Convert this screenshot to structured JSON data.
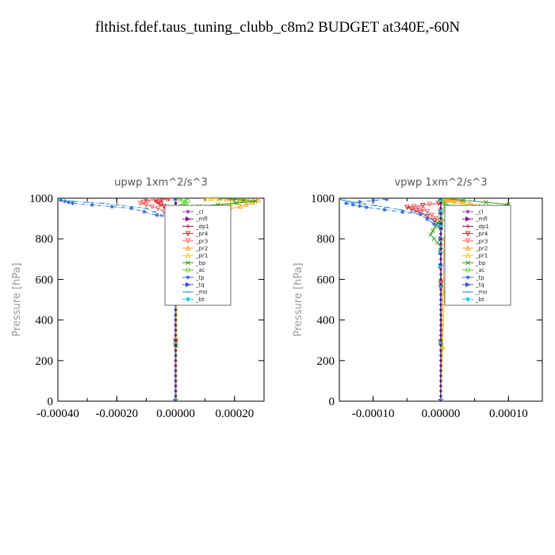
{
  "figure": {
    "title": "flthist.fdef.taus_tuning_clubb_c8m2  BUDGET at340E,-60N"
  },
  "legend_items": [
    {
      "label": "_cl",
      "color": "#7b56a3",
      "marker": "star"
    },
    {
      "label": "_mfl",
      "color": "#8e1b8e",
      "marker": "tri-right"
    },
    {
      "label": "_dp1",
      "color": "#a00f3c",
      "marker": "plus"
    },
    {
      "label": "_pr4",
      "color": "#d9232d",
      "marker": "tri-down"
    },
    {
      "label": "_pr3",
      "color": "#f06a6a",
      "marker": "tri-down"
    },
    {
      "label": "_pr2",
      "color": "#f5a623",
      "marker": "tri-up"
    },
    {
      "label": "_pr1",
      "color": "#eed21a",
      "marker": "tri-up"
    },
    {
      "label": "_bp",
      "color": "#3ca01e",
      "marker": "cross"
    },
    {
      "label": "_ac",
      "color": "#5ccf2b",
      "marker": "circle"
    },
    {
      "label": "_tp",
      "color": "#3b6fd1",
      "marker": "star"
    },
    {
      "label": "_tq",
      "color": "#3a55c8",
      "marker": "tri-right"
    },
    {
      "label": "_mo",
      "color": "#2a95cf",
      "marker": "dash"
    },
    {
      "label": "_bt",
      "color": "#1fd1e0",
      "marker": "diamond"
    }
  ],
  "chart_data": [
    {
      "type": "line",
      "title": "upwp   1xm^2/s^3",
      "ylabel": "Pressure  [hPa]",
      "xlim": [
        -0.0004,
        0.0003
      ],
      "ylim": [
        1000,
        0
      ],
      "xticks": [
        -0.0004,
        -0.0002,
        0.0,
        0.0002
      ],
      "xtick_labels": [
        "-0.00040",
        "-0.00020",
        "0.00000",
        "0.00020"
      ],
      "yticks": [
        0,
        200,
        400,
        600,
        800,
        1000
      ],
      "ytick_labels": [
        "0",
        "200",
        "400",
        "600",
        "800",
        "1000"
      ],
      "legend_position": "top-right",
      "series": [
        {
          "name": "_cl",
          "x": [
            0,
            0,
            0,
            0,
            0,
            0
          ],
          "y": [
            0,
            200,
            400,
            600,
            800,
            1000
          ]
        },
        {
          "name": "_mfl",
          "x": [
            0,
            0,
            0,
            0,
            0,
            0
          ],
          "y": [
            0,
            200,
            400,
            600,
            800,
            1000
          ]
        },
        {
          "name": "_dp1",
          "x": [
            0,
            0,
            0,
            0,
            0,
            0
          ],
          "y": [
            0,
            200,
            400,
            600,
            800,
            1000
          ]
        },
        {
          "name": "_pr4",
          "x": [
            0,
            0,
            -2e-05,
            -5e-05,
            -7e-05,
            0.0
          ],
          "y": [
            0,
            880,
            940,
            970,
            990,
            1000
          ]
        },
        {
          "name": "_pr3",
          "x": [
            0,
            0,
            -6e-05,
            -0.00012,
            -9e-05,
            0.0
          ],
          "y": [
            0,
            900,
            950,
            975,
            990,
            1000
          ]
        },
        {
          "name": "_pr2",
          "x": [
            0,
            4e-06,
            6e-05,
            0.00022,
            0.00028,
            0.00012
          ],
          "y": [
            0,
            820,
            900,
            960,
            990,
            1000
          ]
        },
        {
          "name": "_pr1",
          "x": [
            0,
            6e-06,
            4e-05,
            0.00016,
            0.00024,
            0.0001
          ],
          "y": [
            0,
            820,
            900,
            960,
            990,
            1000
          ]
        },
        {
          "name": "_bp",
          "x": [
            0,
            0,
            1e-05,
            8e-05,
            0.00027,
            0.00015
          ],
          "y": [
            0,
            850,
            920,
            960,
            985,
            1000
          ]
        },
        {
          "name": "_ac",
          "x": [
            0,
            0,
            0,
            2e-05,
            4e-05,
            0.0
          ],
          "y": [
            0,
            850,
            920,
            960,
            985,
            1000
          ]
        },
        {
          "name": "_tp",
          "x": [
            0,
            0,
            -2e-05,
            -0.00015,
            -0.00035,
            -0.00039
          ],
          "y": [
            0,
            820,
            900,
            950,
            975,
            990
          ]
        },
        {
          "name": "_tq",
          "x": [
            0,
            0,
            0,
            0,
            0,
            0
          ],
          "y": [
            0,
            200,
            400,
            600,
            800,
            1000
          ]
        },
        {
          "name": "_mo",
          "x": [
            0,
            0,
            -2e-05,
            -0.0001,
            -0.00025,
            -0.0004
          ],
          "y": [
            0,
            820,
            900,
            950,
            975,
            990
          ]
        },
        {
          "name": "_bt",
          "x": [
            0,
            0,
            0,
            0,
            0,
            0
          ],
          "y": [
            0,
            200,
            400,
            600,
            800,
            1000
          ]
        }
      ]
    },
    {
      "type": "line",
      "title": "vpwp   1xm^2/s^3",
      "ylabel": "Pressure  [hPa]",
      "xlim": [
        -0.00015,
        0.00015
      ],
      "ylim": [
        1000,
        0
      ],
      "xticks": [
        -0.0001,
        0.0,
        0.0001
      ],
      "xtick_labels": [
        "-0.00010",
        "0.00000",
        "0.00010"
      ],
      "yticks": [
        0,
        200,
        400,
        600,
        800,
        1000
      ],
      "ytick_labels": [
        "0",
        "200",
        "400",
        "600",
        "800",
        "1000"
      ],
      "legend_position": "top-right",
      "series": [
        {
          "name": "_cl",
          "x": [
            0,
            0,
            0,
            0,
            0,
            0
          ],
          "y": [
            0,
            200,
            400,
            600,
            800,
            1000
          ]
        },
        {
          "name": "_mfl",
          "x": [
            0,
            0,
            0,
            0,
            0,
            0
          ],
          "y": [
            0,
            200,
            400,
            600,
            800,
            1000
          ]
        },
        {
          "name": "_dp1",
          "x": [
            0,
            0,
            0,
            0,
            0,
            0
          ],
          "y": [
            0,
            200,
            400,
            600,
            800,
            1000
          ]
        },
        {
          "name": "_pr4",
          "x": [
            0,
            0,
            -3e-05,
            -5e-05,
            2e-05,
            0.0
          ],
          "y": [
            0,
            870,
            930,
            955,
            985,
            1000
          ]
        },
        {
          "name": "_pr3",
          "x": [
            0,
            0,
            -2e-05,
            -4e-05,
            3e-05,
            0.0
          ],
          "y": [
            0,
            880,
            935,
            960,
            990,
            1000
          ]
        },
        {
          "name": "_pr2",
          "x": [
            0,
            5e-06,
            3e-05,
            7e-05,
            3e-05,
            0.0
          ],
          "y": [
            0,
            800,
            900,
            950,
            985,
            1000
          ]
        },
        {
          "name": "_pr1",
          "x": [
            0,
            8e-06,
            2e-05,
            6e-05,
            2e-05,
            0.0
          ],
          "y": [
            0,
            800,
            900,
            950,
            985,
            1000
          ]
        },
        {
          "name": "_bp",
          "x": [
            0,
            0,
            -1.5e-05,
            -5e-06,
            4e-05,
            0.0001,
            0.0
          ],
          "y": [
            0,
            760,
            820,
            880,
            930,
            970,
            1000
          ]
        },
        {
          "name": "_ac",
          "x": [
            0,
            0,
            0,
            1e-05,
            0,
            0.0
          ],
          "y": [
            0,
            850,
            920,
            960,
            985,
            1000
          ]
        },
        {
          "name": "_tp",
          "x": [
            0,
            0,
            -3e-05,
            -0.00011,
            -0.00014,
            -8e-05
          ],
          "y": [
            0,
            850,
            920,
            955,
            975,
            995
          ]
        },
        {
          "name": "_tq",
          "x": [
            0,
            0,
            0,
            0,
            0,
            0
          ],
          "y": [
            0,
            200,
            400,
            600,
            800,
            1000
          ]
        },
        {
          "name": "_mo",
          "x": [
            0,
            0,
            -2e-05,
            -8e-05,
            -0.00013,
            -0.00015
          ],
          "y": [
            0,
            850,
            920,
            955,
            980,
            995
          ]
        },
        {
          "name": "_bt",
          "x": [
            0,
            0,
            0,
            0,
            0,
            0
          ],
          "y": [
            0,
            200,
            400,
            600,
            800,
            1000
          ]
        }
      ]
    }
  ]
}
